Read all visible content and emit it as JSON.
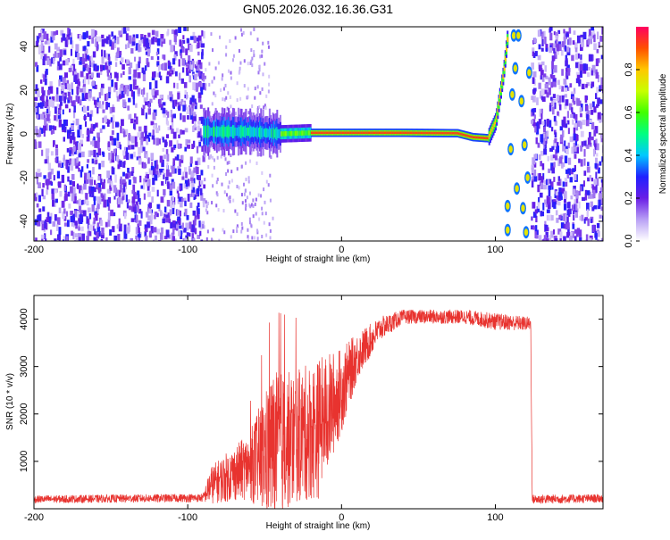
{
  "title": "GN05.2026.032.16.36.G31",
  "chart_data": [
    {
      "type": "heatmap",
      "name": "spectrogram",
      "xlabel": "Height of straight line (km)",
      "ylabel": "Frequency (Hz)",
      "xlim": [
        -200,
        170
      ],
      "ylim": [
        -49,
        49
      ],
      "xticks": [
        -200,
        -100,
        0,
        100
      ],
      "yticks": [
        -40,
        -20,
        0,
        20,
        40
      ],
      "noise_regions_km": [
        [
          -200,
          -90
        ],
        [
          123,
          170
        ]
      ],
      "signal_track": [
        {
          "x": -90,
          "f": 1.0
        },
        {
          "x": -60,
          "f": 1.0
        },
        {
          "x": -40,
          "f": 0.0
        },
        {
          "x": -20,
          "f": 0.5
        },
        {
          "x": 0,
          "f": 0.5
        },
        {
          "x": 40,
          "f": 0.5
        },
        {
          "x": 75,
          "f": 0.3
        },
        {
          "x": 85,
          "f": -1.5
        },
        {
          "x": 95,
          "f": -2.0
        },
        {
          "x": 100,
          "f": 6.0
        },
        {
          "x": 105,
          "f": 28.0
        },
        {
          "x": 108,
          "f": 47.0
        }
      ],
      "colorbar": {
        "label": "Normalized spectral amplitude",
        "range": [
          0,
          1
        ],
        "ticks": [
          "0.0",
          "0.2",
          "0.4",
          "0.6",
          "0.8"
        ]
      }
    },
    {
      "type": "line",
      "name": "snr",
      "xlabel": "Height of straight line (km)",
      "ylabel": "SNR (10 * v/v)",
      "xlim": [
        -200,
        170
      ],
      "ylim": [
        0,
        4500
      ],
      "xticks": [
        -200,
        -100,
        0,
        100
      ],
      "yticks": [
        1000,
        2000,
        3000,
        4000
      ],
      "color": "#e8332f",
      "envelope": [
        {
          "x": -200,
          "mean": 200,
          "amp": 80
        },
        {
          "x": -90,
          "mean": 230,
          "amp": 90
        },
        {
          "x": -85,
          "mean": 500,
          "amp": 400
        },
        {
          "x": -60,
          "mean": 900,
          "amp": 700
        },
        {
          "x": -45,
          "mean": 1300,
          "amp": 1600
        },
        {
          "x": -30,
          "mean": 1500,
          "amp": 1400
        },
        {
          "x": -15,
          "mean": 1700,
          "amp": 1500
        },
        {
          "x": 0,
          "mean": 2500,
          "amp": 900
        },
        {
          "x": 10,
          "mean": 3200,
          "amp": 500
        },
        {
          "x": 25,
          "mean": 3800,
          "amp": 250
        },
        {
          "x": 40,
          "mean": 4050,
          "amp": 150
        },
        {
          "x": 80,
          "mean": 4050,
          "amp": 150
        },
        {
          "x": 100,
          "mean": 3950,
          "amp": 180
        },
        {
          "x": 123,
          "mean": 3900,
          "amp": 150
        },
        {
          "x": 124,
          "mean": 200,
          "amp": 100
        },
        {
          "x": 170,
          "mean": 220,
          "amp": 90
        }
      ]
    }
  ]
}
